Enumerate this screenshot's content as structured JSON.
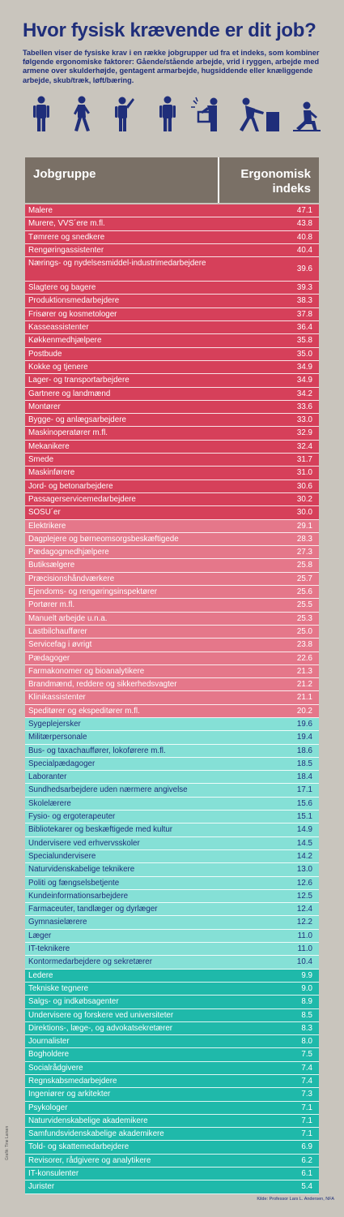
{
  "title": "Hvor fysisk krævende er dit job?",
  "intro": "Tabellen viser de fysiske krav i en række jobgrupper ud fra et indeks, som kombiner følgende ergonomiske faktorer: Gående/stående arbejde, vrid i ryggen, arbejde med armene over skulderhøjde, gentagent armarbejde, hugsiddende eller knæliggende arbejde, skub/træk, løft/bæring.",
  "icons": [
    "standing-person-icon",
    "walking-person-icon",
    "pointing-person-icon",
    "arms-raised-person-icon",
    "lifting-box-person-icon",
    "pushing-person-icon",
    "kneeling-person-icon"
  ],
  "table": {
    "header_job": "Jobgruppe",
    "header_index": "Ergonomisk indeks",
    "rows": [
      {
        "name": "Malere",
        "value": "47.1"
      },
      {
        "name": "Murere, VVS´ere m.fl.",
        "value": "43.8"
      },
      {
        "name": "Tømrere og snedkere",
        "value": "40.8"
      },
      {
        "name": "Rengøringassistenter",
        "value": "40.4"
      },
      {
        "name": "Nærings- og nydelsesmiddel-industrimedarbejdere",
        "value": "39.6"
      },
      {
        "name": "Slagtere og bagere",
        "value": "39.3"
      },
      {
        "name": "Produktionsmedarbejdere",
        "value": "38.3"
      },
      {
        "name": "Frisører og kosmetologer",
        "value": "37.8"
      },
      {
        "name": "Kasseassistenter",
        "value": "36.4"
      },
      {
        "name": "Køkkenmedhjælpere",
        "value": "35.8"
      },
      {
        "name": "Postbude",
        "value": "35.0"
      },
      {
        "name": "Kokke og tjenere",
        "value": "34.9"
      },
      {
        "name": "Lager- og transportarbejdere",
        "value": "34.9"
      },
      {
        "name": "Gartnere og landmænd",
        "value": "34.2"
      },
      {
        "name": "Montører",
        "value": "33.6"
      },
      {
        "name": "Bygge- og anlægsarbejdere",
        "value": "33.0"
      },
      {
        "name": "Maskinoperatører m.fl.",
        "value": "32.9"
      },
      {
        "name": "Mekanikere",
        "value": "32.4"
      },
      {
        "name": "Smede",
        "value": "31.7"
      },
      {
        "name": "Maskinførere",
        "value": "31.0"
      },
      {
        "name": "Jord- og betonarbejdere",
        "value": "30.6"
      },
      {
        "name": "Passagerservicemedarbejdere",
        "value": "30.2"
      },
      {
        "name": "SOSU´er",
        "value": "30.0"
      },
      {
        "name": "Elektrikere",
        "value": "29.1"
      },
      {
        "name": "Dagplejere og børneomsorgsbeskæftigede",
        "value": "28.3"
      },
      {
        "name": "Pædagogmedhjælpere",
        "value": "27.3"
      },
      {
        "name": "Butiksælgere",
        "value": "25.8"
      },
      {
        "name": "Præcisionshåndværkere",
        "value": "25.7"
      },
      {
        "name": "Ejendoms- og rengøringsinspektører",
        "value": "25.6"
      },
      {
        "name": "Portører m.fl.",
        "value": "25.5"
      },
      {
        "name": "Manuelt arbejde u.n.a.",
        "value": "25.3"
      },
      {
        "name": "Lastbilchauffører",
        "value": "25.0"
      },
      {
        "name": "Servicefag i øvrigt",
        "value": "23.8"
      },
      {
        "name": "Pædagoger",
        "value": "22.6"
      },
      {
        "name": "Farmakonomer og bioanalytikere",
        "value": "21.3"
      },
      {
        "name": "Brandmænd, reddere og sikkerhedsvagter",
        "value": "21.2"
      },
      {
        "name": "Klinikassistenter",
        "value": "21.1"
      },
      {
        "name": "Speditører og ekspeditører m.fl.",
        "value": "20.2"
      },
      {
        "name": "Sygeplejersker",
        "value": "19.6"
      },
      {
        "name": "Militærpersonale",
        "value": "19.4"
      },
      {
        "name": "Bus- og taxachauffører, lokoførere m.fl.",
        "value": "18.6"
      },
      {
        "name": "Specialpædagoger",
        "value": "18.5"
      },
      {
        "name": "Laboranter",
        "value": "18.4"
      },
      {
        "name": "Sundhedsarbejdere uden nærmere angivelse",
        "value": "17.1"
      },
      {
        "name": "Skolelærere",
        "value": "15.6"
      },
      {
        "name": "Fysio- og ergoterapeuter",
        "value": "15.1"
      },
      {
        "name": "Bibliotekarer og beskæftigede med kultur",
        "value": "14.9"
      },
      {
        "name": "Undervisere ved erhvervsskoler",
        "value": "14.5"
      },
      {
        "name": "Specialundervisere",
        "value": "14.2"
      },
      {
        "name": "Naturvidenskabelige teknikere",
        "value": "13.0"
      },
      {
        "name": "Politi og fængselsbetjente",
        "value": "12.6"
      },
      {
        "name": "Kundeinformationsarbejdere",
        "value": "12.5"
      },
      {
        "name": "Farmaceuter, tandlæger og dyrlæger",
        "value": "12.4"
      },
      {
        "name": "Gymnasielærere",
        "value": "12.2"
      },
      {
        "name": "Læger",
        "value": "11.0"
      },
      {
        "name": "IT-teknikere",
        "value": "11.0"
      },
      {
        "name": "Kontormedarbejdere og sekretærer",
        "value": "10.4"
      },
      {
        "name": "Ledere",
        "value": "9.9"
      },
      {
        "name": "Tekniske tegnere",
        "value": "9.0"
      },
      {
        "name": "Salgs- og indkøbsagenter",
        "value": "8.9"
      },
      {
        "name": "Undervisere og forskere ved universiteter",
        "value": "8.5"
      },
      {
        "name": "Direktions-, læge-, og advokatsekretærer",
        "value": "8.3"
      },
      {
        "name": "Journalister",
        "value": "8.0"
      },
      {
        "name": "Bogholdere",
        "value": "7.5"
      },
      {
        "name": "Socialrådgivere",
        "value": "7.4"
      },
      {
        "name": "Regnskabsmedarbejdere",
        "value": "7.4"
      },
      {
        "name": "Ingeniører og arkitekter",
        "value": "7.3"
      },
      {
        "name": "Psykologer",
        "value": "7.1"
      },
      {
        "name": "Naturvidenskabelige akademikere",
        "value": "7.1"
      },
      {
        "name": "Samfundsvidenskabelige akademikere",
        "value": "7.1"
      },
      {
        "name": "Told- og skattemedarbejdere",
        "value": "6.9"
      },
      {
        "name": "Revisorer, rådgivere og analytikere",
        "value": "6.2"
      },
      {
        "name": "IT-konsulenter",
        "value": "6.1"
      },
      {
        "name": "Jurister",
        "value": "5.4"
      }
    ]
  },
  "colors": {
    "title": "#1f2e7a",
    "band_1": "#d6405a",
    "band_2": "#e5778a",
    "band_3": "#85e0d6",
    "band_4": "#1fb9aa",
    "header_bg": "#7a7066"
  },
  "credit_left": "Grafik: Tine Larsen",
  "credit_right": "Kilde: Professor Lars L. Andersen, NFA"
}
